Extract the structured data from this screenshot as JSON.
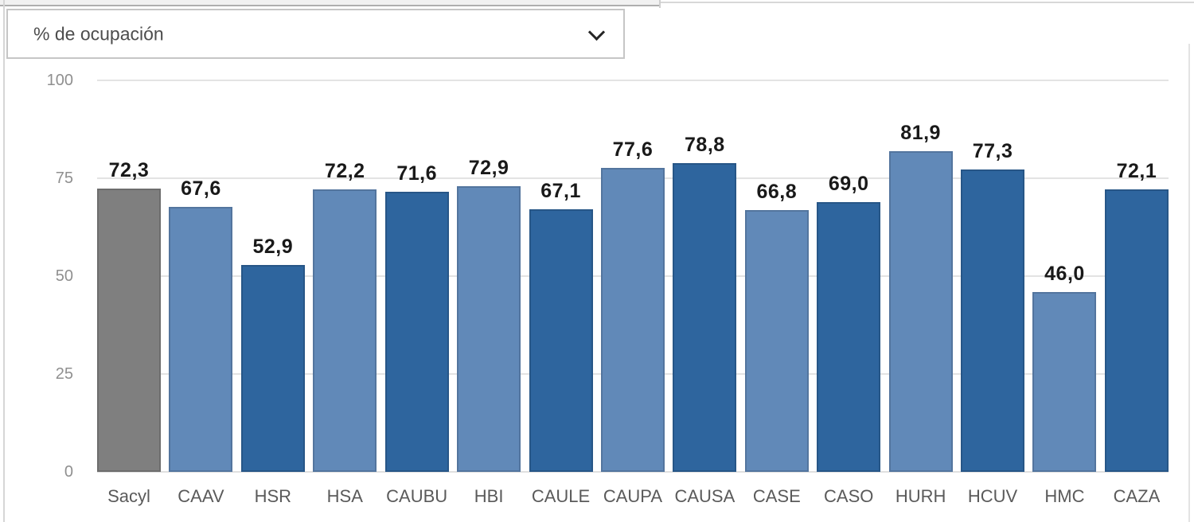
{
  "panel": {
    "metric_dropdown": {
      "value": "% de ocupación",
      "chevron_icon": "chevron-down"
    }
  },
  "chart_data": {
    "type": "bar",
    "title": "",
    "series_name": "% de ocupación",
    "categories": [
      "Sacyl",
      "CAAV",
      "HSR",
      "HSA",
      "CAUBU",
      "HBI",
      "CAULE",
      "CAUPA",
      "CAUSA",
      "CASE",
      "CASO",
      "HURH",
      "HCUV",
      "HMC",
      "CAZA"
    ],
    "values": [
      72.3,
      67.6,
      52.9,
      72.2,
      71.6,
      72.9,
      67.1,
      77.6,
      78.8,
      66.8,
      69.0,
      81.9,
      77.3,
      46.0,
      72.1
    ],
    "value_labels": [
      "72,3",
      "67,6",
      "52,9",
      "72,2",
      "71,6",
      "72,9",
      "67,1",
      "77,6",
      "78,8",
      "66,8",
      "69,0",
      "81,9",
      "77,3",
      "46,0",
      "72,1"
    ],
    "bar_color_roles": [
      "reference",
      "alt-light",
      "alt-dark",
      "alt-light",
      "alt-dark",
      "alt-light",
      "alt-dark",
      "alt-light",
      "alt-dark",
      "alt-light",
      "alt-dark",
      "alt-light",
      "alt-dark",
      "alt-light",
      "alt-dark"
    ],
    "colors": {
      "reference": "#7f7f7f",
      "alt-light": "#6189b8",
      "alt-dark": "#2e659e"
    },
    "ylim": [
      0,
      100
    ],
    "yticks": [
      0,
      25,
      50,
      75,
      100
    ],
    "grid": "horizontal",
    "legend": "none",
    "xlabel": "",
    "ylabel": ""
  }
}
